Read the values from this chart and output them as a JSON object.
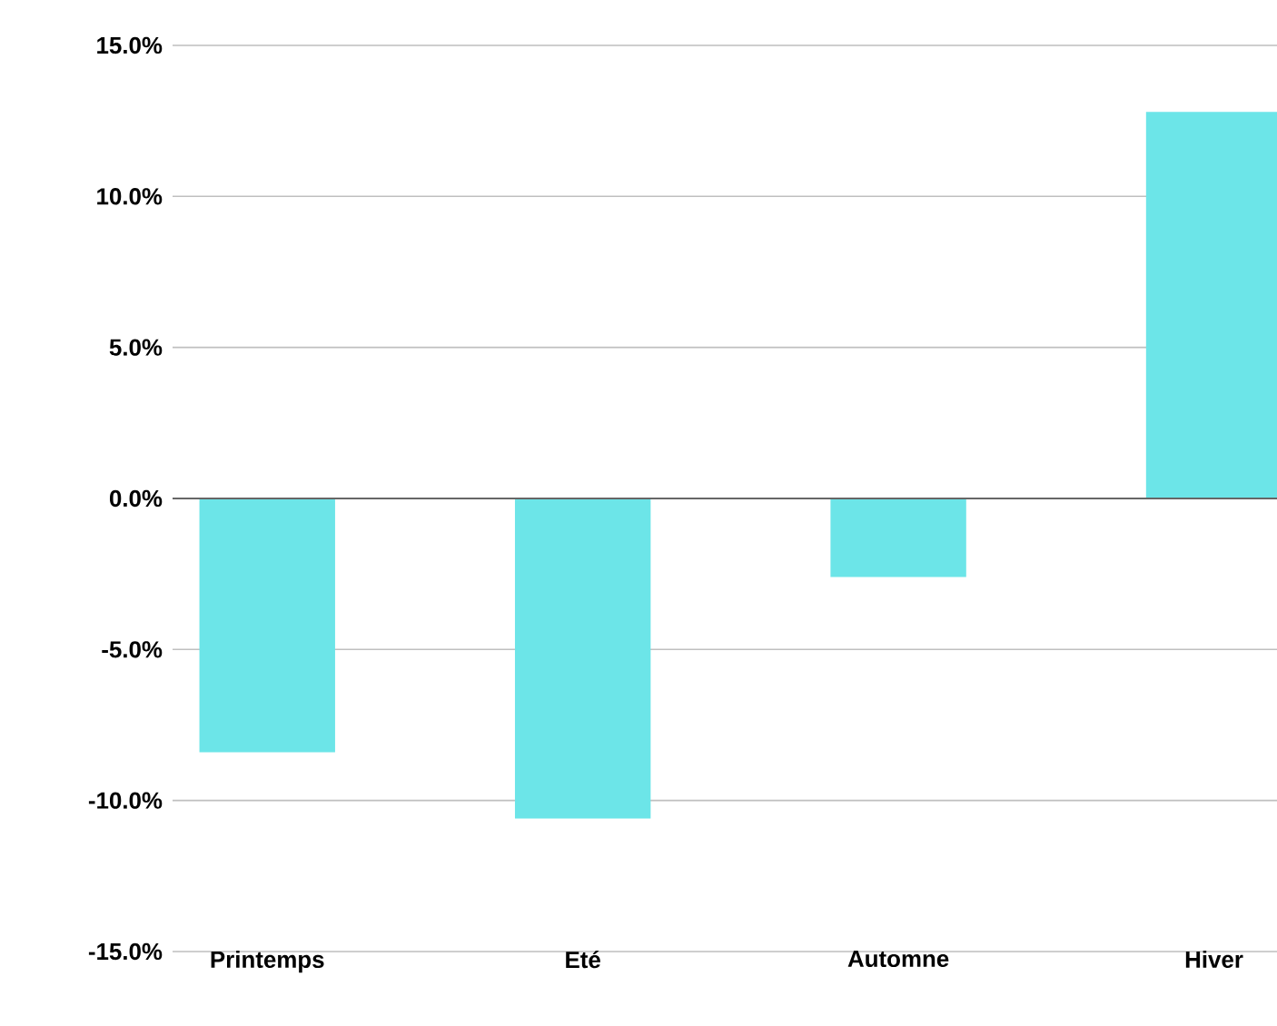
{
  "chart_data": {
    "type": "bar",
    "categories": [
      "Printemps",
      "Eté",
      "Automne",
      "Hiver"
    ],
    "values": [
      -8.4,
      -10.6,
      -2.6,
      12.8
    ],
    "color": "#6ce5e8",
    "ylim": [
      -15,
      15
    ],
    "yticks": [
      {
        "value": -15,
        "label": "-15.0%"
      },
      {
        "value": -10,
        "label": "-10.0%"
      },
      {
        "value": -5,
        "label": "-5.0%"
      },
      {
        "value": 0,
        "label": "0.0%"
      },
      {
        "value": 5,
        "label": "5.0%"
      },
      {
        "value": 10,
        "label": "10.0%"
      },
      {
        "value": 15,
        "label": "15.0%"
      }
    ],
    "grid": "y"
  }
}
